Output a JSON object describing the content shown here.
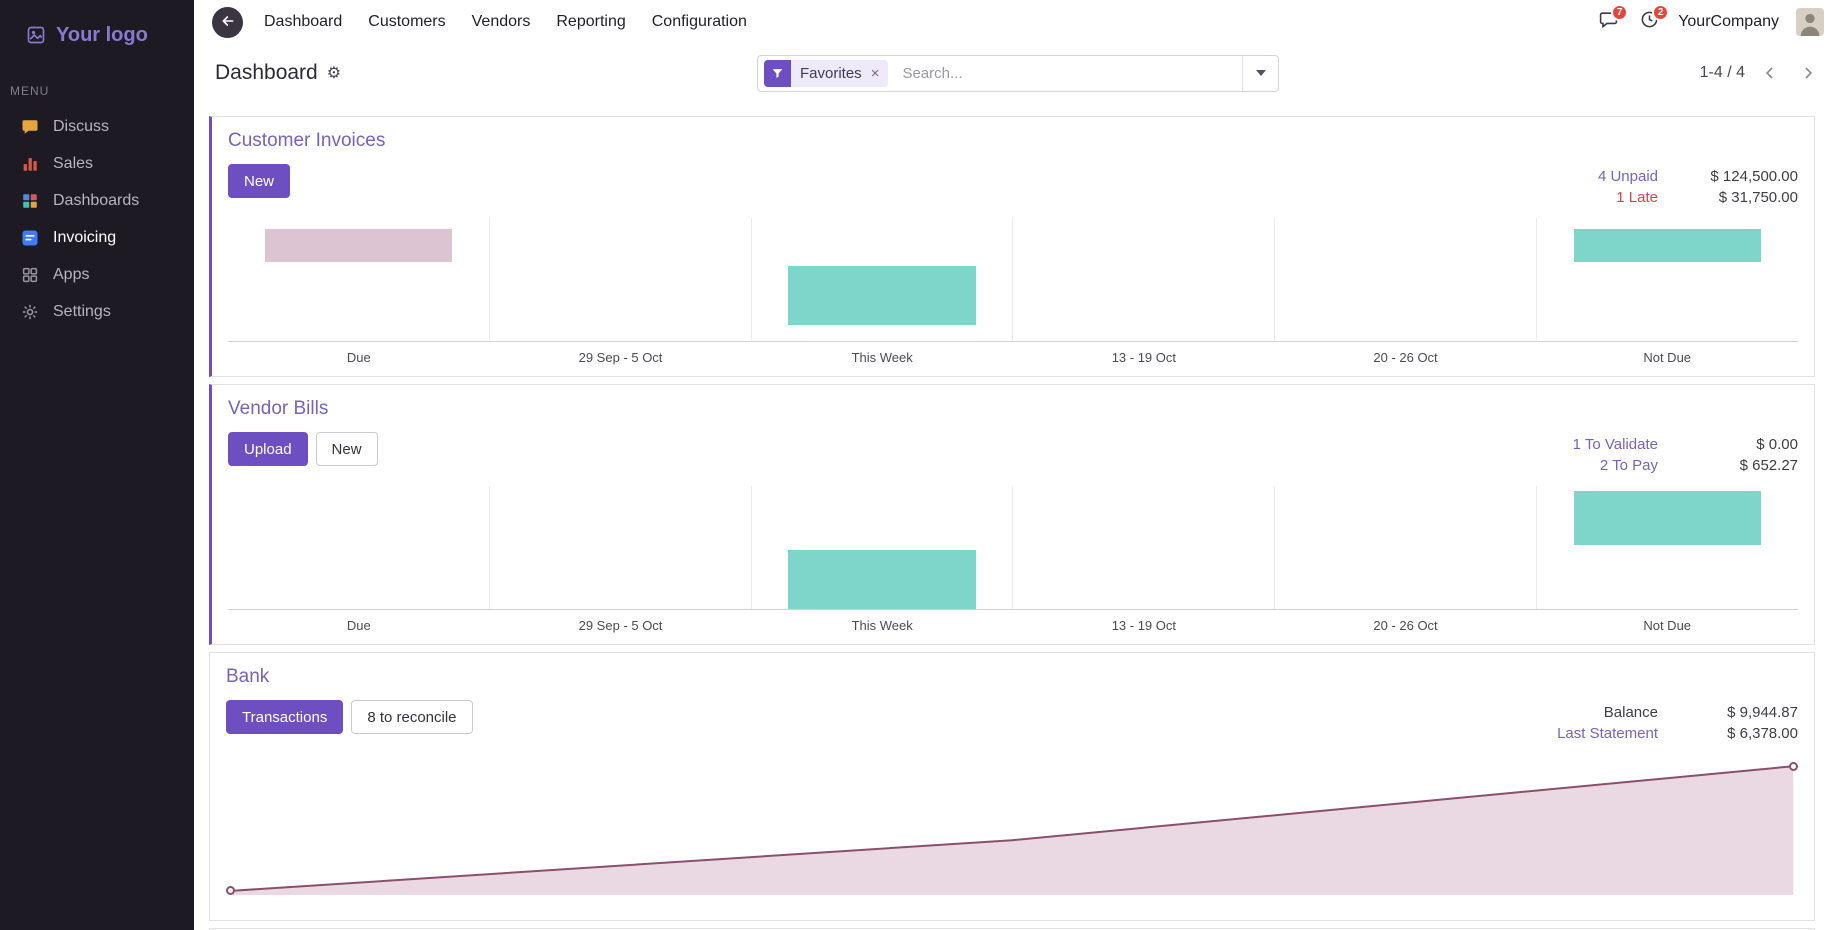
{
  "sidebar": {
    "logo": "Your logo",
    "menu_label": "MENU",
    "items": [
      {
        "label": "Discuss",
        "icon": "discuss-icon"
      },
      {
        "label": "Sales",
        "icon": "sales-icon"
      },
      {
        "label": "Dashboards",
        "icon": "dashboards-icon"
      },
      {
        "label": "Invoicing",
        "icon": "invoicing-icon",
        "active": true
      },
      {
        "label": "Apps",
        "icon": "apps-icon"
      },
      {
        "label": "Settings",
        "icon": "settings-icon"
      }
    ]
  },
  "topnav": {
    "menu": [
      "Dashboard",
      "Customers",
      "Vendors",
      "Reporting",
      "Configuration"
    ],
    "messages_badge": "7",
    "activities_badge": "2",
    "company": "YourCompany"
  },
  "control": {
    "title": "Dashboard",
    "facet_label": "Favorites",
    "search_placeholder": "Search...",
    "pager": "1-4 / 4"
  },
  "colors": {
    "primary": "#6d4fc2",
    "link": "#7564bb",
    "danger": "#d9434e",
    "teal": "#7ed5ca",
    "pink": "#ddc4d2",
    "area_fill": "#ead9e2",
    "area_line": "#8a4f6d"
  },
  "cards": [
    {
      "title": "Customer Invoices",
      "accent": true,
      "buttons": [
        {
          "label": "New",
          "style": "primary"
        }
      ],
      "stats": [
        {
          "label": "4 Unpaid",
          "value": "$ 124,500.00",
          "label_style": "link"
        },
        {
          "label": "1 Late",
          "value": "$ 31,750.00",
          "label_style": "danger"
        }
      ],
      "chart": {
        "type": "bar",
        "categories": [
          "Due",
          "29 Sep - 5 Oct",
          "This Week",
          "13 - 19 Oct",
          "20 - 26 Oct",
          "Not Due"
        ],
        "bars": [
          {
            "category_index": 0,
            "color": "pink",
            "top_pct": 9,
            "height_pct": 27
          },
          {
            "category_index": 2,
            "color": "teal",
            "top_pct": 39,
            "height_pct": 48
          },
          {
            "category_index": 5,
            "color": "teal",
            "top_pct": 9,
            "height_pct": 27
          }
        ]
      }
    },
    {
      "title": "Vendor Bills",
      "accent": true,
      "buttons": [
        {
          "label": "Upload",
          "style": "primary"
        },
        {
          "label": "New",
          "style": "secondary"
        }
      ],
      "stats": [
        {
          "label": "1 To Validate",
          "value": "$ 0.00",
          "label_style": "link"
        },
        {
          "label": "2 To Pay",
          "value": "$ 652.27",
          "label_style": "link"
        }
      ],
      "chart": {
        "type": "bar",
        "categories": [
          "Due",
          "29 Sep - 5 Oct",
          "This Week",
          "13 - 19 Oct",
          "20 - 26 Oct",
          "Not Due"
        ],
        "bars": [
          {
            "category_index": 2,
            "color": "teal",
            "top_pct": 52,
            "height_pct": 48
          },
          {
            "category_index": 5,
            "color": "teal",
            "top_pct": 4,
            "height_pct": 44
          }
        ]
      }
    },
    {
      "title": "Bank",
      "accent": false,
      "buttons": [
        {
          "label": "Transactions",
          "style": "primary"
        },
        {
          "label": "8 to reconcile",
          "style": "secondary"
        }
      ],
      "stats": [
        {
          "label": "Balance",
          "value": "$ 9,944.87",
          "label_style": "plain"
        },
        {
          "label": "Last Statement",
          "value": "$ 6,378.00",
          "label_style": "link"
        }
      ],
      "chart": {
        "type": "area",
        "points_pct": [
          [
            0.3,
            97
          ],
          [
            50,
            60
          ],
          [
            99.7,
            6
          ]
        ]
      }
    }
  ]
}
